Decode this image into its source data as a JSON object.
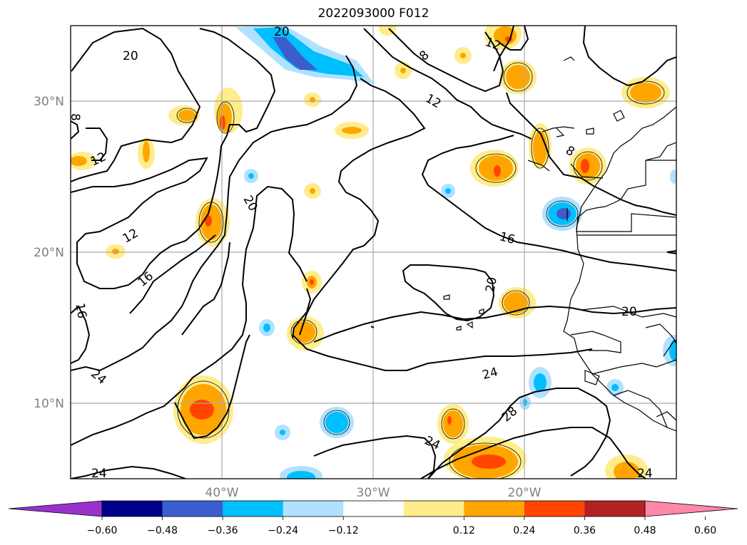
{
  "title": "2022093000 F012",
  "map": {
    "lat_labels": [
      "30°N",
      "20°N",
      "10°N"
    ],
    "lon_labels": [
      "40°W",
      "30°W",
      "20°W"
    ],
    "contour_labels": [
      "20",
      "20",
      "8",
      "12",
      "12",
      "12",
      "8",
      "8",
      "20",
      "12",
      "16",
      "16",
      "16",
      "20",
      "20",
      "24",
      "24",
      "28",
      "24",
      "24",
      "24"
    ]
  },
  "colorbar": {
    "colors": [
      "#9932cc",
      "#00008b",
      "#3a5fcd",
      "#00bfff",
      "#b0e2ff",
      "#ffffff",
      "#ffec8b",
      "#ffa500",
      "#ff4500",
      "#b22222",
      "#ff88aa"
    ],
    "extend_low": "#9932cc",
    "extend_high": "#ff88aa",
    "tick_labels": [
      "−0.60",
      "−0.48",
      "−0.36",
      "−0.24",
      "−0.12",
      "0.12",
      "0.24",
      "0.36",
      "0.48",
      "0.60"
    ]
  }
}
